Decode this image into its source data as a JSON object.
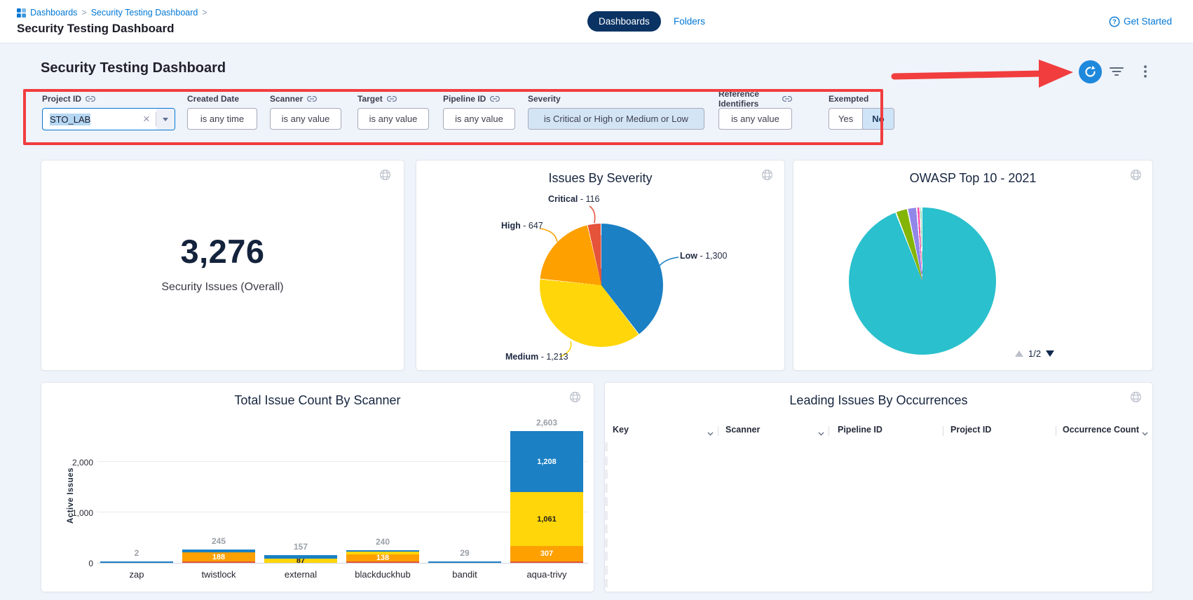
{
  "colors": {
    "accent_blue": "#0278d5",
    "navy_pill": "#0a3364",
    "annotation_red": "#f13d3e",
    "refresh_button": "#1e88dd",
    "page_background": "#eff3fa",
    "selection_highlight": "#b5d7f3",
    "filter_chip_background": "#d3e5f5"
  },
  "header": {
    "breadcrumb": {
      "items": [
        "Dashboards",
        "Security Testing Dashboard"
      ],
      "separator": ">"
    },
    "page_title": "Security Testing Dashboard",
    "tabs": [
      {
        "label": "Dashboards",
        "active": true
      },
      {
        "label": "Folders",
        "active": false
      }
    ],
    "get_started_label": "Get Started"
  },
  "section": {
    "title": "Security Testing Dashboard"
  },
  "filters": {
    "project_id": {
      "label": "Project ID",
      "value": "STO_LAB"
    },
    "created_date": {
      "label": "Created Date",
      "value": "is any time"
    },
    "scanner": {
      "label": "Scanner",
      "value": "is any value"
    },
    "target": {
      "label": "Target",
      "value": "is any value"
    },
    "pipeline_id": {
      "label": "Pipeline ID",
      "value": "is any value"
    },
    "severity": {
      "label": "Severity",
      "value": "is Critical or High or Medium or Low"
    },
    "reference_identifiers": {
      "label": "Reference Identifiers",
      "value": "is any value"
    },
    "exempted": {
      "label": "Exempted",
      "yes": "Yes",
      "no": "No",
      "selected": "No"
    }
  },
  "tiles": {
    "overall": {
      "value": "3,276",
      "label": "Security Issues (Overall)"
    },
    "table": {
      "title": "Leading Issues By Occurrences",
      "columns": [
        {
          "label": "Key",
          "sortable": true
        },
        {
          "label": "Scanner",
          "sortable": true
        },
        {
          "label": "Pipeline ID",
          "sortable": false
        },
        {
          "label": "Project ID",
          "sortable": false
        },
        {
          "label": "Occurrence Count",
          "sortable": true
        }
      ]
    }
  },
  "chart_data": [
    {
      "type": "pie",
      "title": "Issues By Severity",
      "total": 3276,
      "separator_deg": 0.6,
      "callout_separator": " - ",
      "legend_position": "callouts",
      "slices": [
        {
          "label": "Low",
          "value": 1300,
          "value_display": "1,300",
          "color": "#1b80c4"
        },
        {
          "label": "Medium",
          "value": 1213,
          "value_display": "1,213",
          "color": "#ffd60a"
        },
        {
          "label": "High",
          "value": 647,
          "value_display": "647",
          "color": "#fda000"
        },
        {
          "label": "Critical",
          "value": 116,
          "value_display": "116",
          "color": "#e5533b"
        }
      ]
    },
    {
      "type": "pie",
      "title": "OWASP Top 10 - 2021",
      "values_are_percent": true,
      "separator_deg": 1.0,
      "pagination": "1/2",
      "slices": [
        {
          "label": "",
          "value": 93.3,
          "color": "#2ac0cd"
        },
        {
          "label": "",
          "value": 2.6,
          "color": "#84b506"
        },
        {
          "label": "",
          "value": 2.0,
          "color": "#9087e9"
        },
        {
          "label": "",
          "value": 0.7,
          "color": "#fb4fa9"
        },
        {
          "label": "",
          "value": 0.4,
          "color": "#3cb878"
        }
      ]
    },
    {
      "type": "bar",
      "stacked": true,
      "title": "Total Issue Count By Scanner",
      "ylabel": "Active Issues",
      "ylim": [
        0,
        2750
      ],
      "grid": true,
      "yticks": [
        {
          "value": 0,
          "label": "0"
        },
        {
          "value": 1000,
          "label": "1,000"
        },
        {
          "value": 2000,
          "label": "2,000"
        }
      ],
      "palette": {
        "critical": "#e5533b",
        "high": "#fda000",
        "medium": "#ffd60a",
        "low": "#1b80c4"
      },
      "bars": [
        {
          "name": "zap",
          "total": 2,
          "total_label": "2",
          "segments": [
            {
              "sev": "low",
              "value": 2
            }
          ]
        },
        {
          "name": "twistlock",
          "total": 245,
          "total_label": "245",
          "segments": [
            {
              "sev": "critical",
              "value": 5
            },
            {
              "sev": "high",
              "value": 188,
              "label": "188"
            },
            {
              "sev": "low",
              "value": 52
            }
          ]
        },
        {
          "name": "external",
          "total": 157,
          "total_label": "157",
          "segments": [
            {
              "sev": "medium",
              "value": 87,
              "label": "87"
            },
            {
              "sev": "low",
              "value": 70
            }
          ]
        },
        {
          "name": "blackduckhub",
          "total": 240,
          "total_label": "240",
          "segments": [
            {
              "sev": "critical",
              "value": 18
            },
            {
              "sev": "high",
              "value": 138,
              "label": "138"
            },
            {
              "sev": "medium",
              "value": 60
            },
            {
              "sev": "low",
              "value": 24
            }
          ]
        },
        {
          "name": "bandit",
          "total": 29,
          "total_label": "29",
          "segments": [
            {
              "sev": "low",
              "value": 29
            }
          ]
        },
        {
          "name": "aqua-trivy",
          "total": 2603,
          "total_label": "2,603",
          "segments": [
            {
              "sev": "critical",
              "value": 27
            },
            {
              "sev": "high",
              "value": 307,
              "label": "307"
            },
            {
              "sev": "medium",
              "value": 1061,
              "label": "1,061"
            },
            {
              "sev": "low",
              "value": 1208,
              "label": "1,208"
            }
          ]
        }
      ]
    }
  ]
}
